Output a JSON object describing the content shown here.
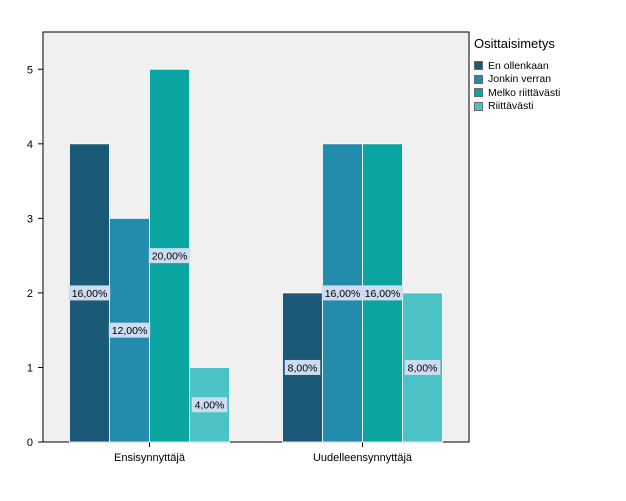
{
  "chart_data": {
    "type": "bar",
    "categories": [
      "Ensisynnyttäjä",
      "Uudelleensynnyttäjä"
    ],
    "series": [
      {
        "name": "En ollenkaan",
        "values": [
          4,
          2
        ],
        "labels": [
          "16,00%",
          "8,00%"
        ],
        "color": "#1b5a77"
      },
      {
        "name": "Jonkin verran",
        "values": [
          3,
          4
        ],
        "labels": [
          "12,00%",
          "16,00%"
        ],
        "color": "#238bab"
      },
      {
        "name": "Melko riittävästi",
        "values": [
          5,
          4
        ],
        "labels": [
          "20,00%",
          "16,00%"
        ],
        "color": "#0aa5a0"
      },
      {
        "name": "Riittävästi",
        "values": [
          1,
          2
        ],
        "labels": [
          "4,00%",
          "8,00%"
        ],
        "color": "#4cc4c7"
      }
    ],
    "title": "",
    "xlabel": "",
    "ylabel": "",
    "ylim": [
      0,
      5.5
    ],
    "yticks": [
      "0",
      "1",
      "2",
      "3",
      "4",
      "5"
    ],
    "grid": false,
    "legend_title": "Osittaisimetys",
    "legend_position": "right",
    "plot_background": "#f0f0f0",
    "label_background": "#cddcf0"
  }
}
